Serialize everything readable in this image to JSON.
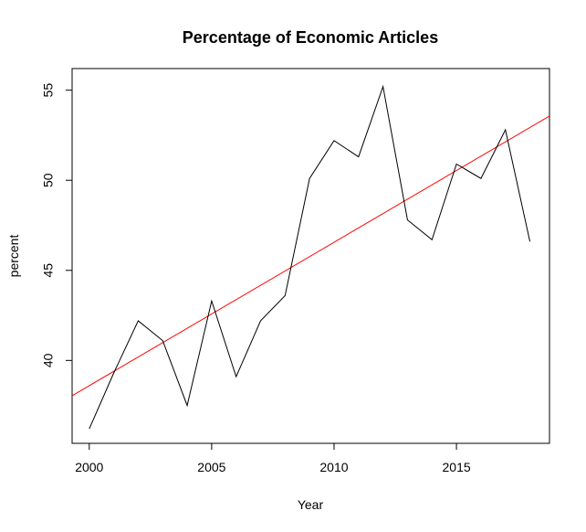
{
  "chart_data": {
    "type": "line",
    "title": "Percentage of Economic Articles",
    "xlabel": "Year",
    "ylabel": "percent",
    "xlim": [
      1999.3,
      2018.8
    ],
    "ylim": [
      35.4,
      56.2
    ],
    "xticks": [
      2000,
      2005,
      2010,
      2015
    ],
    "yticks": [
      40,
      45,
      50,
      55
    ],
    "grid": false,
    "series": [
      {
        "color": "#000000",
        "x": [
          2000,
          2001,
          2002,
          2003,
          2004,
          2005,
          2006,
          2007,
          2008,
          2009,
          2010,
          2011,
          2012,
          2013,
          2014,
          2015,
          2016,
          2017,
          2018
        ],
        "values": [
          36.2,
          39.3,
          42.2,
          41.1,
          37.5,
          43.3,
          39.1,
          42.2,
          43.6,
          50.1,
          52.2,
          51.3,
          55.2,
          47.8,
          46.7,
          50.9,
          50.1,
          52.8,
          46.6
        ]
      }
    ],
    "trend_line": {
      "color": "#ff0000",
      "intercept_at_2000": 38.6,
      "slope": 0.796
    }
  }
}
